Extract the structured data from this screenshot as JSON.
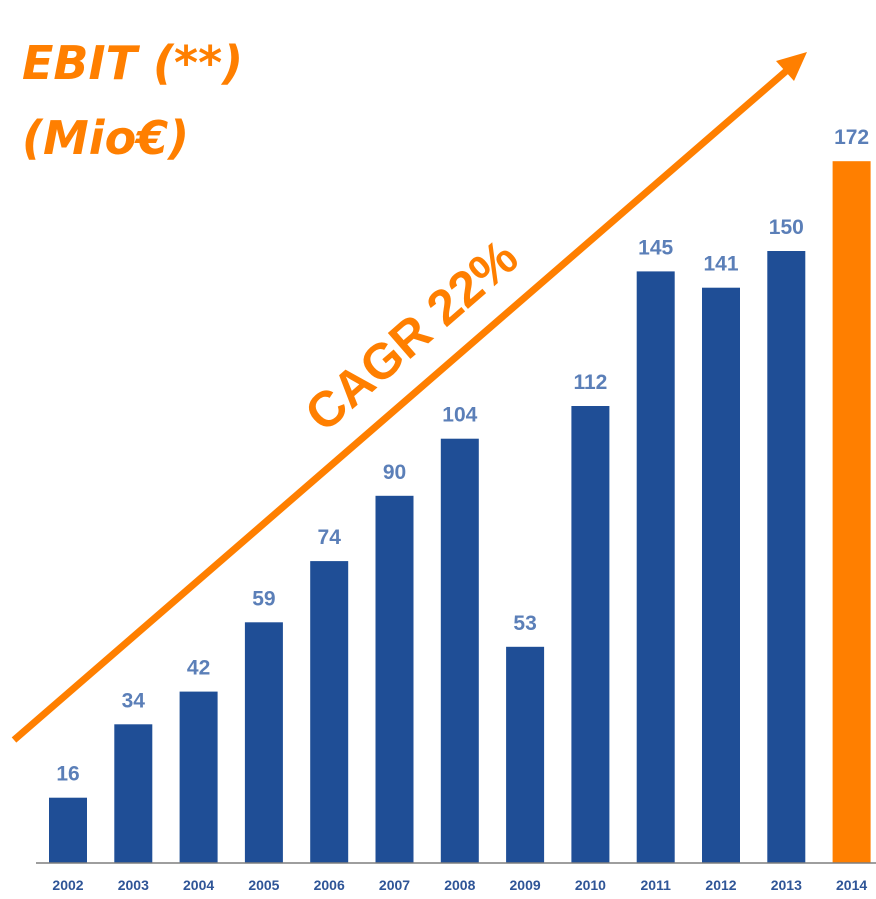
{
  "title": {
    "line1": "EBIT (**)",
    "line2": "(Mio€)"
  },
  "annotation": "CAGR 22%",
  "colors": {
    "bar": "#1f4e96",
    "highlight_bar": "#ff7f00",
    "value_label": "#5b7fb8",
    "axis_label": "#2f5597",
    "arrow": "#ff7f00",
    "axis_line": "#7f7f7f"
  },
  "chart_data": {
    "type": "bar",
    "categories": [
      "2002",
      "2003",
      "2004",
      "2005",
      "2006",
      "2007",
      "2008",
      "2009",
      "2010",
      "2011",
      "2012",
      "2013",
      "2014"
    ],
    "values": [
      16,
      34,
      42,
      59,
      74,
      90,
      104,
      53,
      112,
      145,
      141,
      150,
      172
    ],
    "highlight_category": "2014",
    "title": "EBIT (**) (Mio€)",
    "xlabel": "",
    "ylabel": "",
    "ylim": [
      0,
      190
    ],
    "grid": false,
    "legend": "none",
    "annotations": [
      "CAGR 22%"
    ]
  }
}
